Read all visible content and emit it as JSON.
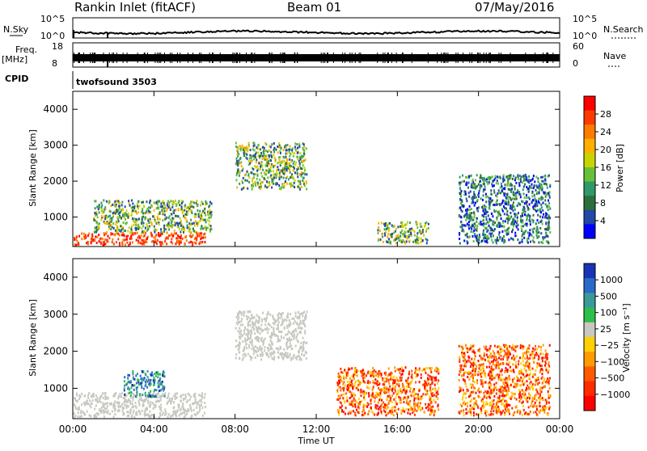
{
  "header": {
    "title": "Rankin Inlet (fitACF)",
    "beam": "Beam 01",
    "date": "07/May/2016"
  },
  "panels": {
    "nsky": {
      "label": "N.Sky",
      "ticks": [
        "10^5",
        "10^0"
      ],
      "right_label": "N.Search",
      "right_ticks": [
        "10^5",
        "10^0"
      ]
    },
    "freq": {
      "label_line1": "Freq.",
      "label_line2": "[MHz]",
      "ticks": [
        "18",
        "8"
      ],
      "right_label": "Nave",
      "right_ticks": [
        "60",
        "0"
      ]
    },
    "cpid": {
      "label": "CPID",
      "value": "twofsound 3503"
    }
  },
  "chart_data": [
    {
      "type": "heatmap",
      "name": "power",
      "ylabel": "Slant Range [km]",
      "xlabel": "",
      "ylim": [
        180,
        4500
      ],
      "yticks": [
        "4000",
        "3000",
        "2000",
        "1000"
      ],
      "colorbar": {
        "label": "Power [dB]",
        "ticks": [
          "28",
          "24",
          "20",
          "16",
          "12",
          "8",
          "4"
        ],
        "colors": [
          "#ff0000",
          "#ff3a00",
          "#ff7a00",
          "#ffb000",
          "#c8d400",
          "#68c03a",
          "#2e9a6a",
          "#2e6e3e",
          "#2247a6",
          "#0000ff"
        ]
      },
      "regions": [
        {
          "t0": 0.0,
          "t1": 6.5,
          "r0": 250,
          "r1": 600,
          "level": "high"
        },
        {
          "t0": 1.0,
          "t1": 6.8,
          "r0": 600,
          "r1": 1500,
          "level": "mid"
        },
        {
          "t0": 8.0,
          "t1": 11.5,
          "r0": 1800,
          "r1": 3100,
          "level": "mid"
        },
        {
          "t0": 15.0,
          "t1": 17.5,
          "r0": 300,
          "r1": 900,
          "level": "mid"
        },
        {
          "t0": 19.0,
          "t1": 23.5,
          "r0": 300,
          "r1": 2200,
          "level": "low"
        }
      ]
    },
    {
      "type": "heatmap",
      "name": "velocity",
      "ylabel": "Slant Range [km]",
      "xlabel": "Time UT",
      "ylim": [
        180,
        4500
      ],
      "yticks": [
        "4000",
        "3000",
        "2000",
        "1000"
      ],
      "xticks": [
        "00:00",
        "04:00",
        "08:00",
        "12:00",
        "16:00",
        "20:00",
        "00:00"
      ],
      "colorbar": {
        "label": "Velocity [m s⁻¹]",
        "ticks": [
          "1000",
          "500",
          "100",
          "25",
          "−25",
          "−100",
          "−500",
          "−1000"
        ],
        "colors": [
          "#1a33b5",
          "#2a6ac8",
          "#3a9a9a",
          "#2ebf4a",
          "#c8c8c0",
          "#ffd000",
          "#ff9a00",
          "#ff5a00",
          "#ff2a00",
          "#ff0000"
        ]
      },
      "regions": [
        {
          "t0": 0.0,
          "t1": 6.5,
          "r0": 250,
          "r1": 900,
          "level": "gray"
        },
        {
          "t0": 2.5,
          "t1": 4.5,
          "r0": 800,
          "r1": 1500,
          "level": "toward"
        },
        {
          "t0": 8.0,
          "t1": 11.5,
          "r0": 1800,
          "r1": 3100,
          "level": "gray"
        },
        {
          "t0": 13.0,
          "t1": 18.0,
          "r0": 300,
          "r1": 1600,
          "level": "away"
        },
        {
          "t0": 19.0,
          "t1": 23.5,
          "r0": 300,
          "r1": 2200,
          "level": "away"
        }
      ]
    }
  ]
}
